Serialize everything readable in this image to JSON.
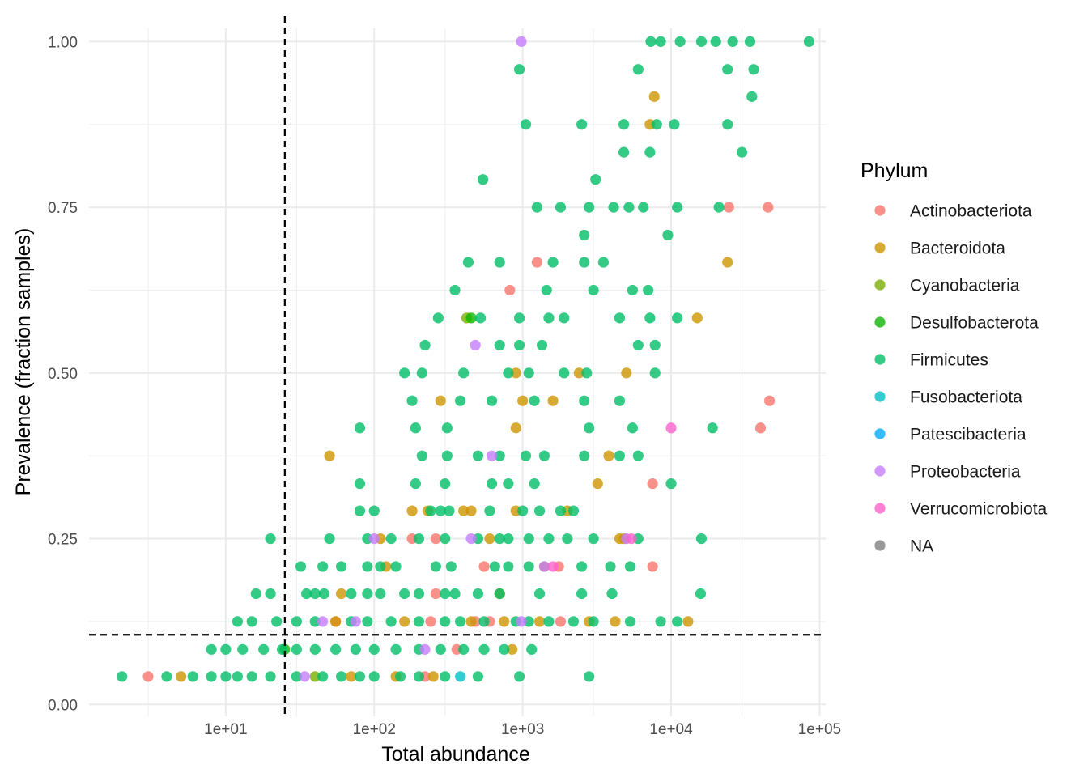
{
  "chart_data": {
    "type": "scatter",
    "title": "",
    "xlabel": "Total abundance",
    "ylabel": "Prevalence (fraction samples)",
    "x_scale": "log10",
    "xlim": [
      1.2,
      110000
    ],
    "ylim": [
      -0.018,
      1.02
    ],
    "x_ticks": [
      10,
      100,
      1000,
      10000,
      100000
    ],
    "x_tick_labels": [
      "1e+01",
      "1e+02",
      "1e+03",
      "1e+04",
      "1e+05"
    ],
    "y_ticks": [
      0,
      0.25,
      0.5,
      0.75,
      1.0
    ],
    "y_tick_labels": [
      "0.00",
      "0.25",
      "0.50",
      "0.75",
      "1.00"
    ],
    "grid": true,
    "legend_position": "right",
    "legend_title": "Phylum",
    "reference_lines": {
      "vertical_x": 25,
      "horizontal_y": 0.105,
      "style": "dashed"
    },
    "series": [
      {
        "name": "Actinobacteriota",
        "color": "#F8766D",
        "points": [
          [
            3,
            0.042
          ],
          [
            220,
            0.042
          ],
          [
            360,
            0.083
          ],
          [
            55,
            0.125
          ],
          [
            240,
            0.125
          ],
          [
            600,
            0.125
          ],
          [
            1800,
            0.125
          ],
          [
            480,
            0.125
          ],
          [
            180,
            0.25
          ],
          [
            260,
            0.25
          ],
          [
            550,
            0.208
          ],
          [
            1750,
            0.208
          ],
          [
            260,
            0.167
          ],
          [
            7500,
            0.208
          ],
          [
            7500,
            0.333
          ],
          [
            1250,
            0.667
          ],
          [
            820,
            0.625
          ],
          [
            24500,
            0.75
          ],
          [
            45000,
            0.75
          ],
          [
            40000,
            0.417
          ],
          [
            46000,
            0.458
          ]
        ]
      },
      {
        "name": "Bacteroidota",
        "color": "#CD9600",
        "points": [
          [
            5,
            0.042
          ],
          [
            70,
            0.042
          ],
          [
            140,
            0.042
          ],
          [
            250,
            0.042
          ],
          [
            55,
            0.125
          ],
          [
            160,
            0.125
          ],
          [
            450,
            0.125
          ],
          [
            750,
            0.125
          ],
          [
            1300,
            0.125
          ],
          [
            2800,
            0.125
          ],
          [
            4200,
            0.125
          ],
          [
            13000,
            0.125
          ],
          [
            60,
            0.167
          ],
          [
            700,
            0.167
          ],
          [
            120,
            0.208
          ],
          [
            1400,
            0.208
          ],
          [
            110,
            0.25
          ],
          [
            600,
            0.25
          ],
          [
            4800,
            0.25
          ],
          [
            4500,
            0.25
          ],
          [
            230,
            0.292
          ],
          [
            400,
            0.292
          ],
          [
            450,
            0.292
          ],
          [
            900,
            0.292
          ],
          [
            2000,
            0.292
          ],
          [
            180,
            0.292
          ],
          [
            3200,
            0.333
          ],
          [
            50,
            0.375
          ],
          [
            3800,
            0.375
          ],
          [
            900,
            0.417
          ],
          [
            1000,
            0.458
          ],
          [
            1600,
            0.458
          ],
          [
            280,
            0.458
          ],
          [
            900,
            0.5
          ],
          [
            2400,
            0.5
          ],
          [
            5000,
            0.5
          ],
          [
            15000,
            0.583
          ],
          [
            24000,
            0.667
          ],
          [
            7200,
            0.875
          ],
          [
            7700,
            0.917
          ],
          [
            850,
            0.083
          ]
        ]
      },
      {
        "name": "Cyanobacteria",
        "color": "#7CAE00",
        "points": [
          [
            40,
            0.042
          ],
          [
            420,
            0.583
          ]
        ]
      },
      {
        "name": "Desulfobacterota",
        "color": "#0CB702",
        "points": [
          [
            25,
            0.083
          ],
          [
            450,
            0.583
          ]
        ]
      },
      {
        "name": "Firmicutes",
        "color": "#00BE67",
        "points": [
          [
            2,
            0.042
          ],
          [
            4,
            0.042
          ],
          [
            6,
            0.042
          ],
          [
            8,
            0.042
          ],
          [
            10,
            0.042
          ],
          [
            12,
            0.042
          ],
          [
            15,
            0.042
          ],
          [
            20,
            0.042
          ],
          [
            30,
            0.042
          ],
          [
            45,
            0.042
          ],
          [
            60,
            0.042
          ],
          [
            80,
            0.042
          ],
          [
            100,
            0.042
          ],
          [
            150,
            0.042
          ],
          [
            200,
            0.042
          ],
          [
            300,
            0.042
          ],
          [
            500,
            0.042
          ],
          [
            950,
            0.042
          ],
          [
            2800,
            0.042
          ],
          [
            8,
            0.083
          ],
          [
            10,
            0.083
          ],
          [
            13,
            0.083
          ],
          [
            18,
            0.083
          ],
          [
            24,
            0.083
          ],
          [
            30,
            0.083
          ],
          [
            40,
            0.083
          ],
          [
            55,
            0.083
          ],
          [
            75,
            0.083
          ],
          [
            100,
            0.083
          ],
          [
            140,
            0.083
          ],
          [
            200,
            0.083
          ],
          [
            280,
            0.083
          ],
          [
            400,
            0.083
          ],
          [
            550,
            0.083
          ],
          [
            750,
            0.083
          ],
          [
            1150,
            0.083
          ],
          [
            12,
            0.125
          ],
          [
            15,
            0.125
          ],
          [
            22,
            0.125
          ],
          [
            30,
            0.125
          ],
          [
            40,
            0.125
          ],
          [
            70,
            0.125
          ],
          [
            90,
            0.125
          ],
          [
            130,
            0.125
          ],
          [
            200,
            0.125
          ],
          [
            300,
            0.125
          ],
          [
            380,
            0.125
          ],
          [
            550,
            0.125
          ],
          [
            900,
            0.125
          ],
          [
            1100,
            0.125
          ],
          [
            1500,
            0.125
          ],
          [
            2200,
            0.125
          ],
          [
            3000,
            0.125
          ],
          [
            5300,
            0.125
          ],
          [
            8500,
            0.125
          ],
          [
            11000,
            0.125
          ],
          [
            16,
            0.167
          ],
          [
            20,
            0.167
          ],
          [
            35,
            0.167
          ],
          [
            40,
            0.167
          ],
          [
            46,
            0.167
          ],
          [
            70,
            0.167
          ],
          [
            90,
            0.167
          ],
          [
            110,
            0.167
          ],
          [
            160,
            0.167
          ],
          [
            200,
            0.167
          ],
          [
            300,
            0.167
          ],
          [
            350,
            0.167
          ],
          [
            500,
            0.167
          ],
          [
            700,
            0.167
          ],
          [
            1300,
            0.167
          ],
          [
            2500,
            0.167
          ],
          [
            4000,
            0.167
          ],
          [
            15800,
            0.167
          ],
          [
            32,
            0.208
          ],
          [
            45,
            0.208
          ],
          [
            60,
            0.208
          ],
          [
            90,
            0.208
          ],
          [
            110,
            0.208
          ],
          [
            140,
            0.208
          ],
          [
            260,
            0.208
          ],
          [
            330,
            0.208
          ],
          [
            650,
            0.208
          ],
          [
            800,
            0.208
          ],
          [
            1100,
            0.208
          ],
          [
            2500,
            0.208
          ],
          [
            3900,
            0.208
          ],
          [
            5300,
            0.208
          ],
          [
            20,
            0.25
          ],
          [
            50,
            0.25
          ],
          [
            90,
            0.25
          ],
          [
            130,
            0.25
          ],
          [
            200,
            0.25
          ],
          [
            300,
            0.25
          ],
          [
            500,
            0.25
          ],
          [
            700,
            0.25
          ],
          [
            800,
            0.25
          ],
          [
            1100,
            0.25
          ],
          [
            1500,
            0.25
          ],
          [
            2000,
            0.25
          ],
          [
            3000,
            0.25
          ],
          [
            6000,
            0.25
          ],
          [
            16000,
            0.25
          ],
          [
            80,
            0.292
          ],
          [
            100,
            0.292
          ],
          [
            240,
            0.292
          ],
          [
            280,
            0.292
          ],
          [
            320,
            0.292
          ],
          [
            600,
            0.292
          ],
          [
            1000,
            0.292
          ],
          [
            1300,
            0.292
          ],
          [
            1800,
            0.292
          ],
          [
            2200,
            0.292
          ],
          [
            80,
            0.333
          ],
          [
            190,
            0.333
          ],
          [
            300,
            0.333
          ],
          [
            620,
            0.333
          ],
          [
            800,
            0.333
          ],
          [
            1200,
            0.333
          ],
          [
            10000,
            0.333
          ],
          [
            210,
            0.375
          ],
          [
            310,
            0.375
          ],
          [
            500,
            0.375
          ],
          [
            700,
            0.375
          ],
          [
            1050,
            0.375
          ],
          [
            1400,
            0.375
          ],
          [
            2600,
            0.375
          ],
          [
            4500,
            0.375
          ],
          [
            6000,
            0.375
          ],
          [
            80,
            0.417
          ],
          [
            190,
            0.417
          ],
          [
            310,
            0.417
          ],
          [
            2800,
            0.417
          ],
          [
            5500,
            0.417
          ],
          [
            19000,
            0.417
          ],
          [
            180,
            0.458
          ],
          [
            380,
            0.458
          ],
          [
            620,
            0.458
          ],
          [
            1200,
            0.458
          ],
          [
            2600,
            0.458
          ],
          [
            4500,
            0.458
          ],
          [
            160,
            0.5
          ],
          [
            210,
            0.5
          ],
          [
            400,
            0.5
          ],
          [
            800,
            0.5
          ],
          [
            1100,
            0.5
          ],
          [
            1900,
            0.5
          ],
          [
            2700,
            0.5
          ],
          [
            7800,
            0.5
          ],
          [
            220,
            0.542
          ],
          [
            700,
            0.542
          ],
          [
            950,
            0.542
          ],
          [
            1350,
            0.542
          ],
          [
            6000,
            0.542
          ],
          [
            7800,
            0.542
          ],
          [
            270,
            0.583
          ],
          [
            520,
            0.583
          ],
          [
            950,
            0.583
          ],
          [
            1500,
            0.583
          ],
          [
            1900,
            0.583
          ],
          [
            4500,
            0.583
          ],
          [
            7200,
            0.583
          ],
          [
            11000,
            0.583
          ],
          [
            350,
            0.625
          ],
          [
            1450,
            0.625
          ],
          [
            3000,
            0.625
          ],
          [
            5500,
            0.625
          ],
          [
            7000,
            0.625
          ],
          [
            1600,
            0.667
          ],
          [
            2600,
            0.667
          ],
          [
            3500,
            0.667
          ],
          [
            430,
            0.667
          ],
          [
            700,
            0.667
          ],
          [
            2600,
            0.708
          ],
          [
            9500,
            0.708
          ],
          [
            1250,
            0.75
          ],
          [
            1800,
            0.75
          ],
          [
            2800,
            0.75
          ],
          [
            4100,
            0.75
          ],
          [
            5200,
            0.75
          ],
          [
            6500,
            0.75
          ],
          [
            11000,
            0.75
          ],
          [
            21000,
            0.75
          ],
          [
            540,
            0.792
          ],
          [
            3100,
            0.792
          ],
          [
            4800,
            0.833
          ],
          [
            7200,
            0.833
          ],
          [
            30000,
            0.833
          ],
          [
            1050,
            0.875
          ],
          [
            2500,
            0.875
          ],
          [
            4800,
            0.875
          ],
          [
            8000,
            0.875
          ],
          [
            10500,
            0.875
          ],
          [
            24000,
            0.875
          ],
          [
            950,
            0.958
          ],
          [
            6000,
            0.958
          ],
          [
            24000,
            0.958
          ],
          [
            36000,
            0.958
          ],
          [
            35000,
            0.917
          ],
          [
            7300,
            1.0
          ],
          [
            8500,
            1.0
          ],
          [
            11500,
            1.0
          ],
          [
            16000,
            1.0
          ],
          [
            20000,
            1.0
          ],
          [
            26000,
            1.0
          ],
          [
            34000,
            1.0
          ],
          [
            85000,
            1.0
          ]
        ]
      },
      {
        "name": "Fusobacteriota",
        "color": "#00BFC4",
        "points": [
          [
            380,
            0.042
          ]
        ]
      },
      {
        "name": "Patescibacteria",
        "color": "#00A9FF",
        "points": []
      },
      {
        "name": "Proteobacteria",
        "color": "#C77CFF",
        "points": [
          [
            34,
            0.042
          ],
          [
            45,
            0.125
          ],
          [
            100,
            0.25
          ],
          [
            620,
            0.375
          ],
          [
            480,
            0.542
          ],
          [
            450,
            0.25
          ],
          [
            1400,
            0.208
          ],
          [
            980,
            1.0
          ],
          [
            75,
            0.125
          ],
          [
            220,
            0.083
          ],
          [
            5000,
            0.25
          ],
          [
            980,
            0.125
          ]
        ]
      },
      {
        "name": "Verrucomicrobiota",
        "color": "#FF61CC",
        "points": [
          [
            10000,
            0.417
          ],
          [
            5400,
            0.25
          ],
          [
            1600,
            0.208
          ]
        ]
      },
      {
        "name": "NA",
        "color": "#808080",
        "points": []
      }
    ]
  }
}
